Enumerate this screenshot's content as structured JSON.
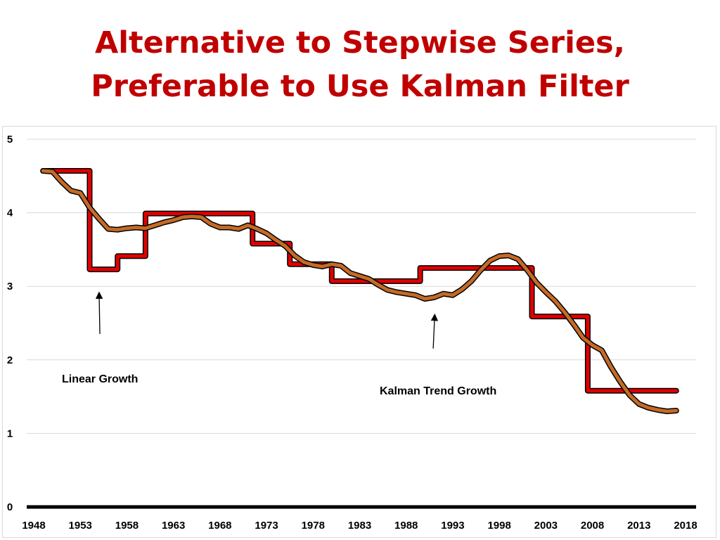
{
  "title": {
    "line1": "Alternative to Stepwise Series,",
    "line2": "Preferable to Use Kalman Filter"
  },
  "chart_data": {
    "type": "line",
    "title": "Alternative to Stepwise Series, Preferable to Use Kalman Filter",
    "xlim": [
      1948,
      2018
    ],
    "ylim": [
      0,
      5
    ],
    "x_ticks": [
      1948,
      1953,
      1958,
      1963,
      1968,
      1973,
      1978,
      1983,
      1988,
      1993,
      1998,
      2003,
      2008,
      2013,
      2018
    ],
    "y_ticks": [
      0,
      1,
      2,
      3,
      4,
      5
    ],
    "grid": true,
    "series": [
      {
        "color": "#e00000",
        "x": [
          1949,
          1954,
          1954,
          1957,
          1957,
          1960,
          1960,
          1966,
          1966,
          1971.5,
          1971.5,
          1975.5,
          1975.5,
          1980,
          1980,
          1989.5,
          1989.5,
          2001.5,
          2001.5,
          2007.5,
          2007.5,
          2017
        ],
        "y": [
          4.57,
          4.57,
          3.23,
          3.23,
          3.41,
          3.41,
          3.99,
          3.99,
          3.99,
          3.99,
          3.58,
          3.58,
          3.3,
          3.3,
          3.07,
          3.07,
          3.25,
          3.25,
          2.59,
          2.59,
          1.58,
          1.58
        ]
      },
      {
        "color": "#c56a26",
        "x": [
          1949,
          1950,
          1951,
          1952,
          1953,
          1954,
          1955,
          1956,
          1957,
          1958,
          1959,
          1960,
          1961,
          1962,
          1963,
          1964,
          1965,
          1966,
          1967,
          1968,
          1969,
          1970,
          1971,
          1972,
          1973,
          1974,
          1975,
          1976,
          1977,
          1978,
          1979,
          1980,
          1981,
          1982,
          1983,
          1984,
          1985,
          1986,
          1987,
          1988,
          1989,
          1990,
          1991,
          1992,
          1993,
          1994,
          1995,
          1996,
          1997,
          1998,
          1999,
          2000,
          2001,
          2002,
          2003,
          2004,
          2005,
          2006,
          2007,
          2008,
          2009,
          2010,
          2011,
          2012,
          2013,
          2014,
          2015,
          2016,
          2017
        ],
        "y": [
          4.57,
          4.56,
          4.42,
          4.3,
          4.27,
          4.07,
          3.92,
          3.78,
          3.77,
          3.79,
          3.8,
          3.79,
          3.83,
          3.87,
          3.9,
          3.94,
          3.95,
          3.94,
          3.85,
          3.8,
          3.8,
          3.78,
          3.83,
          3.78,
          3.72,
          3.63,
          3.55,
          3.42,
          3.33,
          3.29,
          3.27,
          3.3,
          3.28,
          3.18,
          3.14,
          3.1,
          3.02,
          2.95,
          2.92,
          2.9,
          2.88,
          2.83,
          2.85,
          2.9,
          2.88,
          2.96,
          3.07,
          3.22,
          3.35,
          3.41,
          3.42,
          3.37,
          3.22,
          3.05,
          2.92,
          2.8,
          2.65,
          2.48,
          2.3,
          2.2,
          2.13,
          1.9,
          1.7,
          1.52,
          1.4,
          1.35,
          1.32,
          1.3,
          1.31
        ]
      }
    ],
    "annotations": [
      {
        "text": "Linear Growth",
        "x": 1955.1,
        "y": 2.18,
        "arrow_to": [
          1955.1,
          2.88
        ]
      },
      {
        "text": "Kalman Trend Growth",
        "x": 1990.9,
        "y": 2.03,
        "arrow_to": [
          1990.9,
          2.58
        ]
      }
    ]
  }
}
